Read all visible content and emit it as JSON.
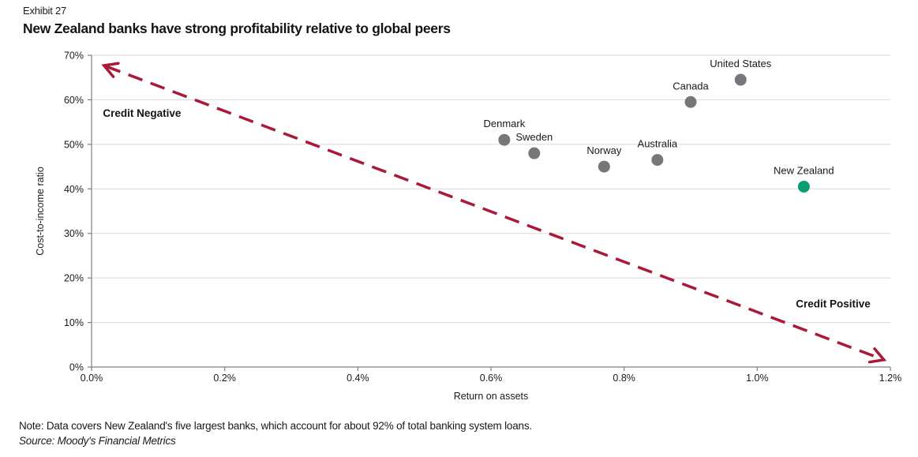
{
  "exhibit_label": "Exhibit 27",
  "title": "New Zealand banks have strong profitability relative to global peers",
  "note": "Note: Data covers New Zealand's five largest banks, which account for about 92% of total banking system loans.",
  "source": "Source: Moody's Financial Metrics",
  "colors": {
    "dot_gray": "#76777a",
    "dot_green": "#0b9c74",
    "arrow_red": "#aa1937",
    "gridline": "#d9d9d9",
    "axis": "#7f7f7f",
    "text": "#1a1a1a"
  },
  "chart_data": {
    "type": "scatter",
    "xlabel": "Return on assets",
    "ylabel": "Cost-to-income ratio",
    "xlim": [
      0,
      1.2
    ],
    "ylim": [
      0,
      70
    ],
    "grid": "horizontal",
    "x_ticks": [
      {
        "value": 0.0,
        "label": "0.0%"
      },
      {
        "value": 0.2,
        "label": "0.2%"
      },
      {
        "value": 0.4,
        "label": "0.4%"
      },
      {
        "value": 0.6,
        "label": "0.6%"
      },
      {
        "value": 0.8,
        "label": "0.8%"
      },
      {
        "value": 1.0,
        "label": "1.0%"
      },
      {
        "value": 1.2,
        "label": "1.2%"
      }
    ],
    "y_ticks": [
      {
        "value": 0,
        "label": "0%"
      },
      {
        "value": 10,
        "label": "10%"
      },
      {
        "value": 20,
        "label": "20%"
      },
      {
        "value": 30,
        "label": "30%"
      },
      {
        "value": 40,
        "label": "40%"
      },
      {
        "value": 50,
        "label": "50%"
      },
      {
        "value": 60,
        "label": "60%"
      },
      {
        "value": 70,
        "label": "70%"
      }
    ],
    "points": [
      {
        "label": "Denmark",
        "x": 0.62,
        "y": 51,
        "color": "gray"
      },
      {
        "label": "Sweden",
        "x": 0.665,
        "y": 48,
        "color": "gray"
      },
      {
        "label": "Norway",
        "x": 0.77,
        "y": 45,
        "color": "gray"
      },
      {
        "label": "Australia",
        "x": 0.85,
        "y": 46.5,
        "color": "gray"
      },
      {
        "label": "Canada",
        "x": 0.9,
        "y": 59.5,
        "color": "gray"
      },
      {
        "label": "United States",
        "x": 0.975,
        "y": 64.5,
        "color": "gray"
      },
      {
        "label": "New Zealand",
        "x": 1.07,
        "y": 40.5,
        "color": "green"
      }
    ],
    "annotations": [
      {
        "text": "Credit Negative",
        "x": 0.017,
        "y": 57,
        "align": "start"
      },
      {
        "text": "Credit Positive",
        "x": 1.114,
        "y": 14.2,
        "align": "middle"
      }
    ],
    "arrow": {
      "x_start": 0.022,
      "y_start": 67.5,
      "x_end": 1.187,
      "y_end": 1.8,
      "double_headed": true,
      "style": "dashed"
    }
  }
}
